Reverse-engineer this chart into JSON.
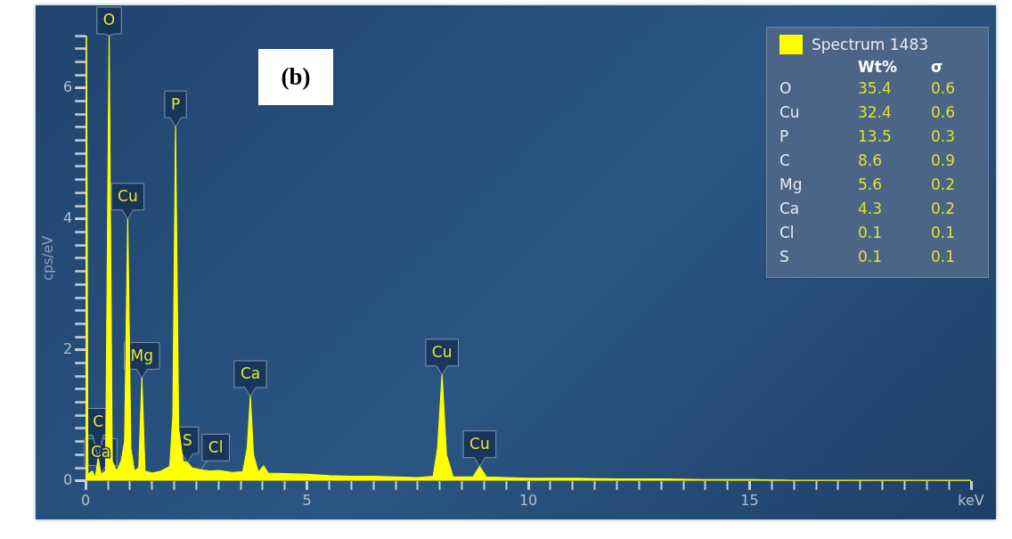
{
  "chart_data": {
    "type": "area",
    "xlabel": null,
    "ylabel": "cps/eV",
    "x": [
      0,
      0.02,
      0.05,
      0.15,
      0.22,
      0.28,
      0.35,
      0.45,
      0.53,
      0.6,
      0.7,
      0.8,
      0.88,
      0.95,
      1.02,
      1.1,
      1.2,
      1.27,
      1.34,
      1.5,
      1.7,
      1.9,
      1.97,
      2.03,
      2.1,
      2.2,
      2.3,
      2.4,
      2.6,
      2.8,
      3,
      3.3,
      3.55,
      3.65,
      3.72,
      3.79,
      3.9,
      4.02,
      4.12,
      4.5,
      5,
      5.5,
      6,
      6.5,
      7,
      7.5,
      7.85,
      7.95,
      8.05,
      8.15,
      8.3,
      8.75,
      8.9,
      9.05,
      9.5,
      10,
      11,
      12,
      13,
      14,
      15,
      16,
      17,
      18,
      19,
      20
    ],
    "series": [
      {
        "name": "Spectrum 1483",
        "color": "#ffff00",
        "values": [
          0.05,
          6.8,
          0.1,
          0.15,
          0.05,
          0.35,
          0.1,
          0.15,
          6.8,
          0.3,
          0.15,
          0.3,
          0.6,
          4.0,
          0.5,
          0.15,
          0.2,
          1.57,
          0.15,
          0.12,
          0.15,
          0.22,
          1.0,
          5.41,
          0.8,
          0.3,
          0.28,
          0.2,
          0.17,
          0.15,
          0.16,
          0.13,
          0.14,
          0.5,
          1.29,
          0.4,
          0.13,
          0.23,
          0.12,
          0.11,
          0.1,
          0.08,
          0.07,
          0.07,
          0.06,
          0.05,
          0.07,
          0.5,
          1.62,
          0.4,
          0.06,
          0.06,
          0.22,
          0.06,
          0.05,
          0.04,
          0.04,
          0.03,
          0.03,
          0.02,
          0.02,
          0.01,
          0.01,
          0.01,
          0.01,
          0.01
        ]
      }
    ],
    "xlim": [
      0,
      20
    ],
    "xticks": [
      0,
      {
        "value": 0.5,
        "label": null
      },
      {
        "value": 1,
        "label": null
      },
      {
        "value": 1.5,
        "label": null
      },
      {
        "value": 2,
        "label": null
      },
      {
        "value": 2.5,
        "label": null
      },
      {
        "value": 3,
        "label": null
      },
      {
        "value": 3.5,
        "label": null
      },
      {
        "value": 4,
        "label": null
      },
      {
        "value": 4.5,
        "label": null
      },
      5,
      {
        "value": 5.5,
        "label": null
      },
      {
        "value": 6,
        "label": null
      },
      {
        "value": 6.5,
        "label": null
      },
      {
        "value": 7,
        "label": null
      },
      {
        "value": 7.5,
        "label": null
      },
      {
        "value": 8,
        "label": null
      },
      {
        "value": 8.5,
        "label": null
      },
      {
        "value": 9,
        "label": null
      },
      {
        "value": 9.5,
        "label": null
      },
      10,
      {
        "value": 10.5,
        "label": null
      },
      {
        "value": 11,
        "label": null
      },
      {
        "value": 11.5,
        "label": null
      },
      {
        "value": 12,
        "label": null
      },
      {
        "value": 12.5,
        "label": null
      },
      {
        "value": 13,
        "label": null
      },
      {
        "value": 13.5,
        "label": null
      },
      {
        "value": 14,
        "label": null
      },
      {
        "value": 14.5,
        "label": null
      },
      15,
      {
        "value": 15.5,
        "label": null
      },
      {
        "value": 16,
        "label": null
      },
      {
        "value": 16.5,
        "label": null
      },
      {
        "value": 17,
        "label": null
      },
      {
        "value": 17.5,
        "label": null
      },
      {
        "value": 18,
        "label": null
      },
      {
        "value": 18.5,
        "label": null
      },
      {
        "value": 19,
        "label": null
      },
      {
        "value": 19.5,
        "label": null
      },
      {
        "value": 20,
        "label": "keV"
      }
    ],
    "ylim": [
      0,
      6.8
    ],
    "yticks": [
      0,
      {
        "value": 0.2,
        "label": null
      },
      {
        "value": 0.4,
        "label": null
      },
      {
        "value": 0.6,
        "label": null
      },
      {
        "value": 0.8,
        "label": null
      },
      {
        "value": 1,
        "label": null
      },
      {
        "value": 1.2,
        "label": null
      },
      {
        "value": 1.4,
        "label": null
      },
      {
        "value": 1.6,
        "label": null
      },
      {
        "value": 1.8,
        "label": null
      },
      2,
      {
        "value": 2.2,
        "label": null
      },
      {
        "value": 2.4,
        "label": null
      },
      {
        "value": 2.6,
        "label": null
      },
      {
        "value": 2.8,
        "label": null
      },
      {
        "value": 3,
        "label": null
      },
      {
        "value": 3.2,
        "label": null
      },
      {
        "value": 3.4,
        "label": null
      },
      {
        "value": 3.6,
        "label": null
      },
      {
        "value": 3.8,
        "label": null
      },
      4,
      {
        "value": 4.2,
        "label": null
      },
      {
        "value": 4.4,
        "label": null
      },
      {
        "value": 4.6,
        "label": null
      },
      {
        "value": 4.8,
        "label": null
      },
      {
        "value": 5,
        "label": null
      },
      {
        "value": 5.2,
        "label": null
      },
      {
        "value": 5.4,
        "label": null
      },
      {
        "value": 5.6,
        "label": null
      },
      {
        "value": 5.8,
        "label": null
      },
      6,
      {
        "value": 6.2,
        "label": null
      },
      {
        "value": 6.4,
        "label": null
      },
      {
        "value": 6.6,
        "label": null
      },
      {
        "value": 6.8,
        "label": null
      }
    ],
    "grid": false,
    "legend": "top right",
    "marker": "none",
    "line_style": "solid",
    "annotations": [
      "(b)",
      {
        "text": "O",
        "x": 0.53,
        "y": 6.8
      },
      {
        "text": "Ca",
        "x": 0.34,
        "y": 0.1
      },
      {
        "text": "C",
        "x": 0.28,
        "y": 0.35
      },
      {
        "text": "Cu",
        "x": 0.95,
        "y": 4.0
      },
      {
        "text": "Mg",
        "x": 1.27,
        "y": 1.57
      },
      {
        "text": "P",
        "x": 2.03,
        "y": 5.41
      },
      {
        "text": "S",
        "x": 2.3,
        "y": 0.28
      },
      {
        "text": "Cl",
        "x": 2.6,
        "y": 0.17
      },
      {
        "text": "Ca",
        "x": 3.72,
        "y": 1.29
      },
      {
        "text": "Cu",
        "x": 8.05,
        "y": 1.62
      },
      {
        "text": "Cu",
        "x": 8.9,
        "y": 0.22
      },
      "Wt%",
      "σ",
      "O",
      "35.4",
      "0.6",
      "Cu",
      "32.4",
      "0.6",
      "P",
      "13.5",
      "0.3",
      "C",
      "8.6",
      "0.9",
      "Mg",
      "5.6",
      "0.2",
      "Ca",
      "4.3",
      "0.2",
      "Cl",
      "0.1",
      "0.1",
      "S",
      "0.1",
      "0.1"
    ]
  }
}
